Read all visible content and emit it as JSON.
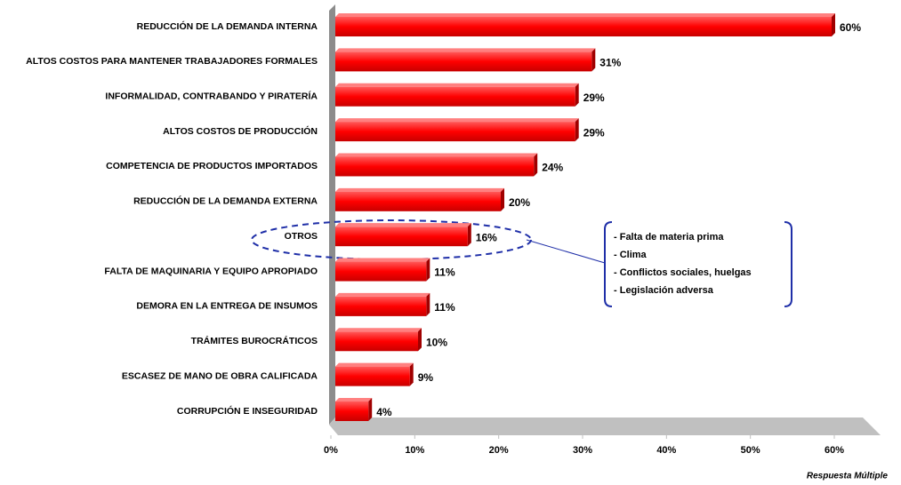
{
  "chart_data": {
    "type": "bar",
    "orientation": "horizontal",
    "categories": [
      "REDUCCIÓN DE LA DEMANDA INTERNA",
      "ALTOS COSTOS PARA MANTENER TRABAJADORES FORMALES",
      "INFORMALIDAD, CONTRABANDO Y PIRATERÍA",
      "ALTOS COSTOS DE PRODUCCIÓN",
      "COMPETENCIA DE PRODUCTOS IMPORTADOS",
      "REDUCCIÓN DE LA DEMANDA EXTERNA",
      "OTROS",
      "FALTA DE MAQUINARIA Y EQUIPO APROPIADO",
      "DEMORA EN LA ENTREGA DE INSUMOS",
      "TRÁMITES BUROCRÁTICOS",
      "ESCASEZ DE MANO DE OBRA CALIFICADA",
      "CORRUPCIÓN E INSEGURIDAD"
    ],
    "values": [
      60,
      31,
      29,
      29,
      24,
      20,
      16,
      11,
      11,
      10,
      9,
      4
    ],
    "value_labels": [
      "60%",
      "31%",
      "29%",
      "29%",
      "24%",
      "20%",
      "16%",
      "11%",
      "11%",
      "10%",
      "9%",
      "4%"
    ],
    "color": "#ff0000",
    "xlim": [
      0,
      60
    ],
    "xticks": [
      {
        "value": 0,
        "label": "0%"
      },
      {
        "value": 10,
        "label": "10%"
      },
      {
        "value": 20,
        "label": "20%"
      },
      {
        "value": 30,
        "label": "30%"
      },
      {
        "value": 40,
        "label": "40%"
      },
      {
        "value": 50,
        "label": "50%"
      },
      {
        "value": 60,
        "label": "60%"
      }
    ],
    "annotation": {
      "category_index": 6,
      "lines": [
        "- Falta de materia prima",
        "- Clima",
        "- Conflictos sociales, huelgas",
        "- Legislación adversa"
      ]
    },
    "footnote": "Respuesta Múltiple"
  }
}
